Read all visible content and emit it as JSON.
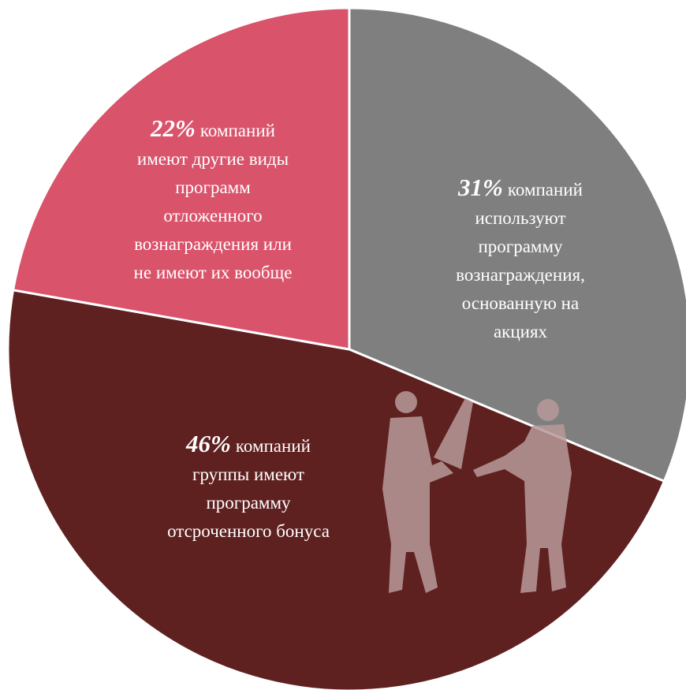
{
  "chart_data": {
    "type": "pie",
    "values": [
      31,
      46,
      22
    ],
    "value_labels": [
      "31%",
      "46%",
      "22%"
    ],
    "categories": [
      "компаний\nиспользуют\nпрограмму\nвознаграждения,\nоснованную на\nакциях",
      "компаний\nгруппы имеют\nпрограмму\nотсроченного бонуса",
      "компаний\nимеют другие виды\nпрограмм\nотложенного\nвознаграждения или\nне имеют их вообще"
    ],
    "colors": [
      "#7f7f7f",
      "#5e2120",
      "#d9536b"
    ]
  }
}
